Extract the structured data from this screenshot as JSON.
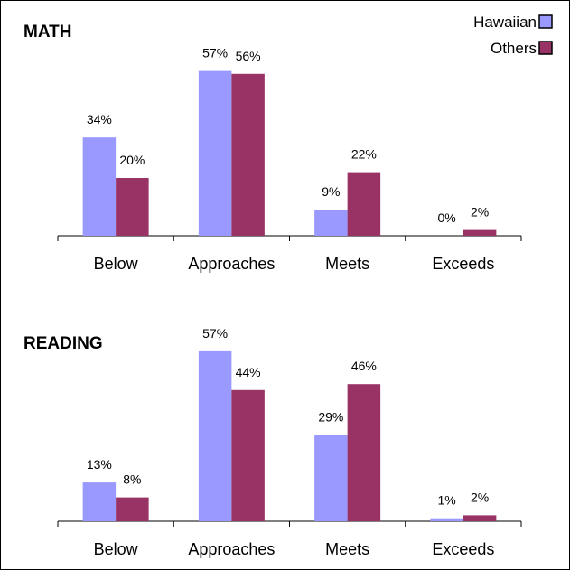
{
  "legend": [
    {
      "name": "Hawaiian",
      "color": "#9999ff"
    },
    {
      "name": "Others",
      "color": "#993366"
    }
  ],
  "chart_data": [
    {
      "type": "bar",
      "title": "MATH",
      "categories": [
        "Below",
        "Approaches",
        "Meets",
        "Exceeds"
      ],
      "series": [
        {
          "name": "Hawaiian",
          "values": [
            34,
            57,
            9,
            0
          ],
          "labels": [
            "34%",
            "57%",
            "9%",
            "0%"
          ]
        },
        {
          "name": "Others",
          "values": [
            20,
            56,
            22,
            2
          ],
          "labels": [
            "20%",
            "56%",
            "22%",
            "2%"
          ]
        }
      ],
      "ylim": [
        0,
        60
      ],
      "legend_position": "top-right",
      "grid": false
    },
    {
      "type": "bar",
      "title": "READING",
      "categories": [
        "Below",
        "Approaches",
        "Meets",
        "Exceeds"
      ],
      "series": [
        {
          "name": "Hawaiian",
          "values": [
            13,
            57,
            29,
            1
          ],
          "labels": [
            "13%",
            "57%",
            "29%",
            "1%"
          ]
        },
        {
          "name": "Others",
          "values": [
            8,
            44,
            46,
            2
          ],
          "labels": [
            "8%",
            "44%",
            "46%",
            "2%"
          ]
        }
      ],
      "ylim": [
        0,
        60
      ],
      "grid": false
    }
  ]
}
